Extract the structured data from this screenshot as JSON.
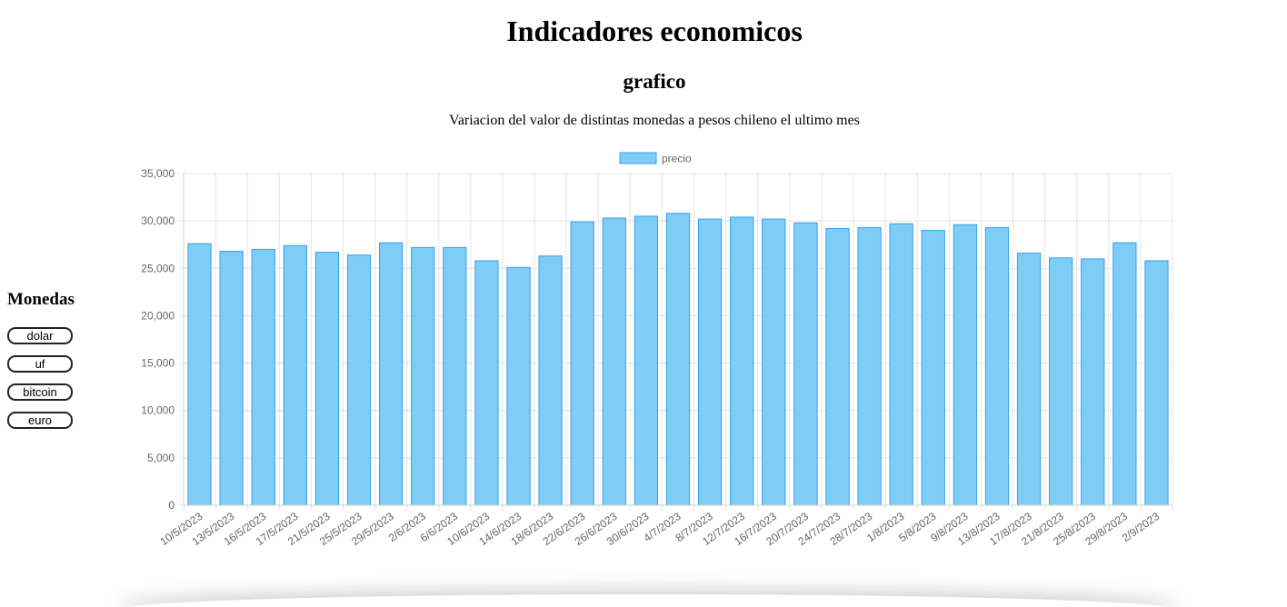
{
  "header": {
    "title": "Indicadores economicos",
    "subtitle": "grafico",
    "description": "Variacion del valor de distintas monedas a pesos chileno el ultimo mes"
  },
  "sidebar": {
    "heading": "Monedas",
    "buttons": [
      {
        "label": "dolar"
      },
      {
        "label": "uf"
      },
      {
        "label": "bitcoin"
      },
      {
        "label": "euro"
      }
    ]
  },
  "colors": {
    "bar_fill": "#7ecdf6",
    "bar_border": "#36a2eb",
    "grid": "#e5e5e5",
    "axis_text": "#666666"
  },
  "chart_data": {
    "type": "bar",
    "legend": {
      "position": "top",
      "label": "precio"
    },
    "ylim": [
      0,
      35000
    ],
    "yticks": [
      0,
      5000,
      10000,
      15000,
      20000,
      25000,
      30000,
      35000
    ],
    "ytick_labels": [
      "0",
      "5,000",
      "10,000",
      "15,000",
      "20,000",
      "25,000",
      "30,000",
      "35,000"
    ],
    "grid": true,
    "categories": [
      "10/5/2023",
      "13/5/2023",
      "16/5/2023",
      "17/5/2023",
      "21/5/2023",
      "25/5/2023",
      "29/5/2023",
      "2/6/2023",
      "6/6/2023",
      "10/6/2023",
      "14/6/2023",
      "18/6/2023",
      "22/6/2023",
      "26/6/2023",
      "30/6/2023",
      "4/7/2023",
      "8/7/2023",
      "12/7/2023",
      "16/7/2023",
      "20/7/2023",
      "24/7/2023",
      "28/7/2023",
      "1/8/2023",
      "5/8/2023",
      "9/8/2023",
      "13/8/2023",
      "17/8/2023",
      "21/8/2023",
      "25/8/2023",
      "29/8/2023",
      "2/9/2023"
    ],
    "series": [
      {
        "name": "precio",
        "values": [
          27600,
          26800,
          27000,
          27400,
          26700,
          26400,
          27700,
          27200,
          27200,
          25800,
          25100,
          26300,
          29900,
          30300,
          30500,
          30800,
          30200,
          30400,
          30200,
          29800,
          29200,
          29300,
          29700,
          29000,
          29600,
          29300,
          26600,
          26100,
          26000,
          27700,
          25800
        ]
      }
    ]
  }
}
